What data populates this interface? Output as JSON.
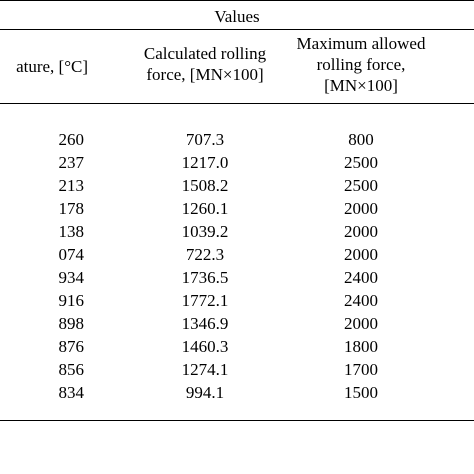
{
  "table": {
    "group_header": "Values",
    "columns": [
      "ature, [°C]",
      [
        "Calculated rolling",
        "force, [MN×100]"
      ],
      [
        "Maximum allowed",
        "rolling force,",
        "[MN×100]"
      ]
    ],
    "rows": [
      [
        "260",
        "707.3",
        "800"
      ],
      [
        "237",
        "1217.0",
        "2500"
      ],
      [
        "213",
        "1508.2",
        "2500"
      ],
      [
        "178",
        "1260.1",
        "2000"
      ],
      [
        "138",
        "1039.2",
        "2000"
      ],
      [
        "074",
        "722.3",
        "2000"
      ],
      [
        "934",
        "1736.5",
        "2400"
      ],
      [
        "916",
        "1772.1",
        "2400"
      ],
      [
        "898",
        "1346.9",
        "2000"
      ],
      [
        "876",
        "1460.3",
        "1800"
      ],
      [
        "856",
        "1274.1",
        "1700"
      ],
      [
        "834",
        "994.1",
        "1500"
      ]
    ]
  }
}
